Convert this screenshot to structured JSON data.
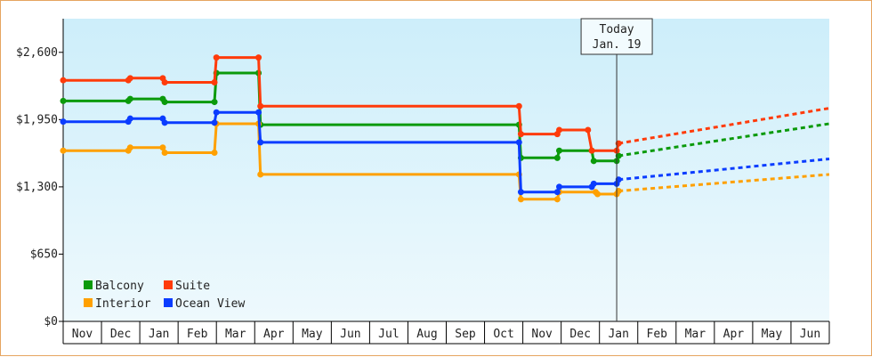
{
  "chart_data": {
    "type": "line",
    "ylim": [
      0,
      2925
    ],
    "yticks": [
      {
        "value": 0,
        "label": "$0"
      },
      {
        "value": 650,
        "label": "$650"
      },
      {
        "value": 1300,
        "label": "$1,300"
      },
      {
        "value": 1950,
        "label": "$1,950"
      },
      {
        "value": 2600,
        "label": "$2,600"
      }
    ],
    "month_labels": [
      "Nov",
      "Dec",
      "Jan",
      "Feb",
      "Mar",
      "Apr",
      "May",
      "Jun",
      "Jul",
      "Aug",
      "Sep",
      "Oct",
      "Nov",
      "Dec",
      "Jan",
      "Feb",
      "Mar",
      "Apr",
      "May",
      "Jun"
    ],
    "today": {
      "line1": "Today",
      "line2": "Jan. 19",
      "x": 14.45
    },
    "legend": [
      {
        "label": "Balcony",
        "color": "#0b9a0b"
      },
      {
        "label": "Suite",
        "color": "#ff3b0a"
      },
      {
        "label": "Interior",
        "color": "#ffa000"
      },
      {
        "label": "Ocean View",
        "color": "#0a3cff"
      }
    ],
    "series": [
      {
        "name": "Balcony",
        "color": "#0b9a0b",
        "points": [
          [
            0,
            2130
          ],
          [
            1.7,
            2130
          ],
          [
            1.75,
            2150
          ],
          [
            2.6,
            2150
          ],
          [
            2.65,
            2120
          ],
          [
            3.95,
            2120
          ],
          [
            4,
            2400
          ],
          [
            5.1,
            2400
          ],
          [
            5.15,
            1900
          ],
          [
            11.9,
            1900
          ],
          [
            11.95,
            1580
          ],
          [
            12.9,
            1580
          ],
          [
            12.95,
            1650
          ],
          [
            13.8,
            1650
          ],
          [
            13.85,
            1550
          ],
          [
            14.45,
            1550
          ],
          [
            14.5,
            1600
          ]
        ],
        "forecast": [
          [
            14.5,
            1600
          ],
          [
            20,
            1910
          ]
        ]
      },
      {
        "name": "Suite",
        "color": "#ff3b0a",
        "points": [
          [
            0,
            2330
          ],
          [
            1.7,
            2330
          ],
          [
            1.75,
            2350
          ],
          [
            2.6,
            2350
          ],
          [
            2.65,
            2310
          ],
          [
            3.95,
            2310
          ],
          [
            4,
            2550
          ],
          [
            5.1,
            2550
          ],
          [
            5.15,
            2080
          ],
          [
            11.9,
            2080
          ],
          [
            11.95,
            1810
          ],
          [
            12.9,
            1810
          ],
          [
            12.95,
            1850
          ],
          [
            13.7,
            1850
          ],
          [
            13.8,
            1650
          ],
          [
            14.45,
            1650
          ],
          [
            14.5,
            1720
          ]
        ],
        "forecast": [
          [
            14.5,
            1720
          ],
          [
            20,
            2060
          ]
        ]
      },
      {
        "name": "Interior",
        "color": "#ffa000",
        "points": [
          [
            0,
            1650
          ],
          [
            1.7,
            1650
          ],
          [
            1.75,
            1680
          ],
          [
            2.6,
            1680
          ],
          [
            2.65,
            1630
          ],
          [
            3.95,
            1630
          ],
          [
            4,
            1910
          ],
          [
            5.1,
            1910
          ],
          [
            5.15,
            1420
          ],
          [
            11.9,
            1420
          ],
          [
            11.95,
            1180
          ],
          [
            12.9,
            1180
          ],
          [
            12.95,
            1250
          ],
          [
            13.9,
            1250
          ],
          [
            13.95,
            1230
          ],
          [
            14.45,
            1230
          ],
          [
            14.5,
            1260
          ]
        ],
        "forecast": [
          [
            14.5,
            1260
          ],
          [
            20,
            1420
          ]
        ]
      },
      {
        "name": "Ocean View",
        "color": "#0a3cff",
        "points": [
          [
            0,
            1930
          ],
          [
            1.7,
            1930
          ],
          [
            1.75,
            1960
          ],
          [
            2.6,
            1960
          ],
          [
            2.65,
            1920
          ],
          [
            3.95,
            1920
          ],
          [
            4,
            2020
          ],
          [
            5.1,
            2020
          ],
          [
            5.15,
            1730
          ],
          [
            11.9,
            1730
          ],
          [
            11.95,
            1250
          ],
          [
            12.9,
            1250
          ],
          [
            12.95,
            1300
          ],
          [
            13.8,
            1300
          ],
          [
            13.85,
            1330
          ],
          [
            14.45,
            1330
          ],
          [
            14.5,
            1370
          ]
        ],
        "forecast": [
          [
            14.5,
            1370
          ],
          [
            20,
            1570
          ]
        ]
      }
    ]
  }
}
